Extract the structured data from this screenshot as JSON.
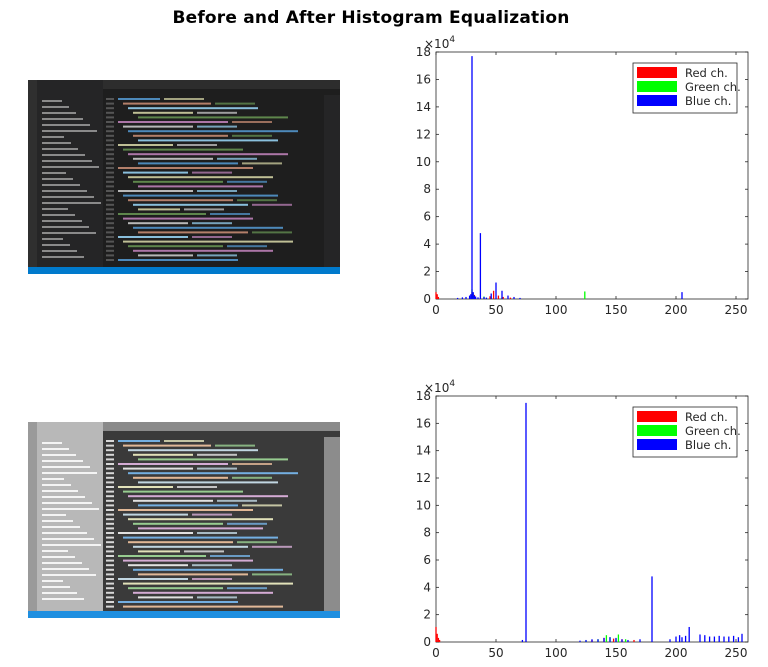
{
  "figure": {
    "title": "Before and After Histogram Equalization",
    "before_screenshot": "code-editor-screenshot-original",
    "after_screenshot": "code-editor-screenshot-equalized"
  },
  "colors": {
    "red": "#ff0000",
    "green": "#00ff00",
    "blue": "#0000ff"
  },
  "chart_data": [
    {
      "type": "bar",
      "name": "histogram-before",
      "xlim": [
        0,
        260
      ],
      "ylim": [
        0,
        180000
      ],
      "xticks": [
        "0",
        "50",
        "100",
        "150",
        "200",
        "250"
      ],
      "yticks": [
        "0",
        "2",
        "4",
        "6",
        "8",
        "10",
        "12",
        "14",
        "16",
        "18"
      ],
      "y_exponent_label": "×10",
      "y_exponent_power": "4",
      "legend": [
        "Red ch.",
        "Green ch.",
        "Blue ch."
      ],
      "legend_position": "top-right",
      "grid": false,
      "series": [
        {
          "name": "Red ch.",
          "x": [
            0,
            1,
            2,
            30,
            32,
            45,
            48,
            52,
            56,
            62
          ],
          "values": [
            5000,
            3500,
            1500,
            5000,
            3000,
            2000,
            6000,
            2500,
            1500,
            1000
          ]
        },
        {
          "name": "Green ch.",
          "x": [
            30,
            31,
            32,
            40,
            46,
            55,
            124
          ],
          "values": [
            7000,
            4000,
            2000,
            1800,
            1200,
            1000,
            5500
          ]
        },
        {
          "name": "Blue ch.",
          "x": [
            18,
            22,
            25,
            28,
            29,
            30,
            31,
            32,
            33,
            35,
            37,
            40,
            42,
            46,
            50,
            55,
            60,
            65,
            70,
            205
          ],
          "values": [
            800,
            1200,
            1500,
            2500,
            3500,
            177000,
            5000,
            2500,
            1800,
            1200,
            48000,
            1500,
            1000,
            4000,
            12000,
            6000,
            2500,
            1500,
            800,
            5000
          ]
        }
      ]
    },
    {
      "type": "bar",
      "name": "histogram-after",
      "xlim": [
        0,
        260
      ],
      "ylim": [
        0,
        180000
      ],
      "xticks": [
        "0",
        "50",
        "100",
        "150",
        "200",
        "250"
      ],
      "yticks": [
        "0",
        "2",
        "4",
        "6",
        "8",
        "10",
        "12",
        "14",
        "16",
        "18"
      ],
      "y_exponent_label": "×10",
      "y_exponent_power": "4",
      "legend": [
        "Red ch.",
        "Green ch.",
        "Blue ch."
      ],
      "legend_position": "top-right",
      "grid": false,
      "series": [
        {
          "name": "Red ch.",
          "x": [
            0,
            1,
            2,
            3,
            130,
            140,
            148,
            155,
            165
          ],
          "values": [
            11000,
            6000,
            3000,
            1500,
            1500,
            3000,
            2500,
            2000,
            1500
          ]
        },
        {
          "name": "Green ch.",
          "x": [
            125,
            135,
            142,
            145,
            150,
            152,
            158
          ],
          "values": [
            1000,
            2000,
            5000,
            3500,
            2500,
            5500,
            2000
          ]
        },
        {
          "name": "Blue ch.",
          "x": [
            72,
            75,
            120,
            125,
            130,
            135,
            140,
            145,
            150,
            155,
            160,
            170,
            180,
            195,
            200,
            203,
            205,
            208,
            211,
            220,
            224,
            228,
            232,
            236,
            240,
            244,
            248,
            252,
            255
          ],
          "values": [
            1500,
            175000,
            1000,
            1500,
            2000,
            2000,
            3000,
            3500,
            3000,
            2000,
            1500,
            2000,
            48000,
            2000,
            4000,
            5000,
            3500,
            4500,
            11000,
            5500,
            5000,
            4000,
            4000,
            4500,
            4000,
            4000,
            4500,
            3500,
            6000
          ]
        }
      ]
    }
  ]
}
